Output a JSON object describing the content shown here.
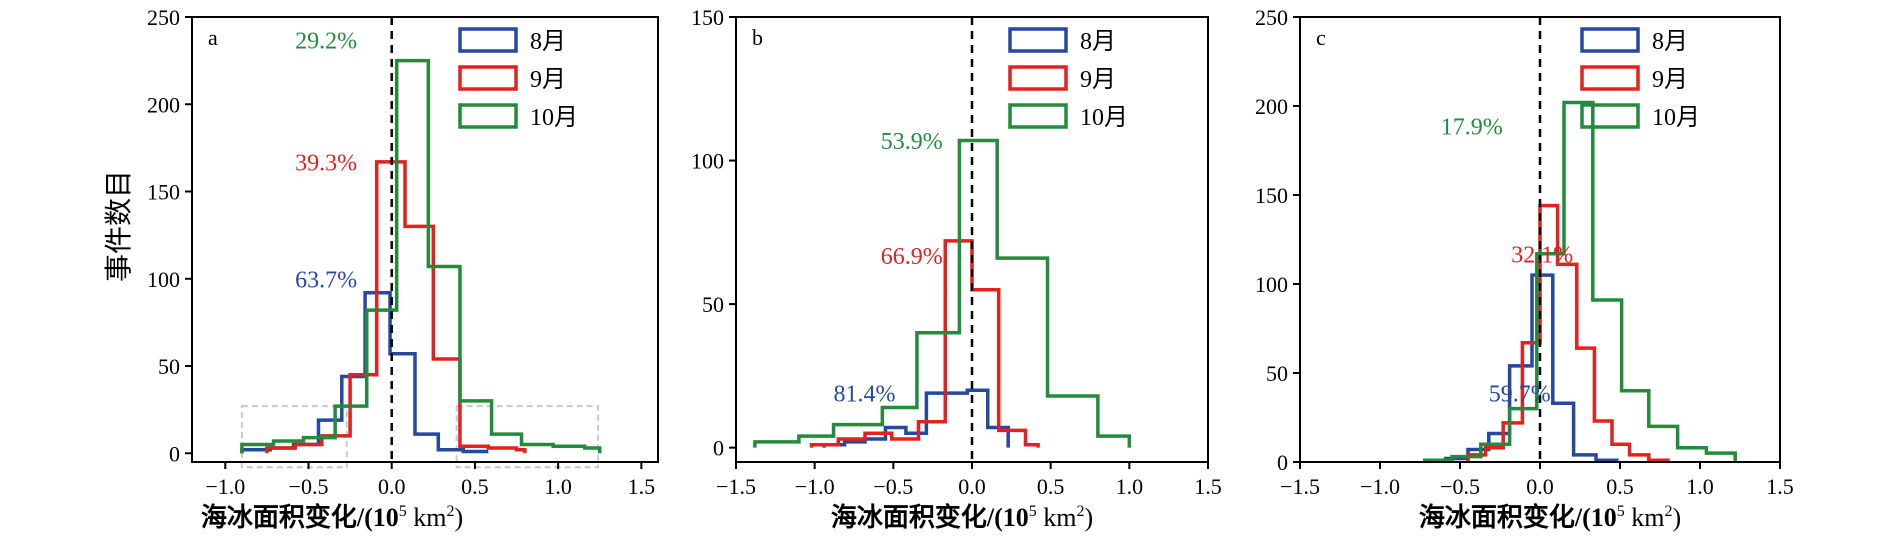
{
  "figure": {
    "ylabel": "事件数目",
    "xlabel_main": "海冰面积变化/(10",
    "xlabel_sup": "5",
    "xlabel_unit": " km",
    "xlabel_sup2": "2",
    "xlabel_close": ")"
  },
  "colors": {
    "aug": "#2548a3",
    "sep": "#e3211f",
    "oct": "#228b3c",
    "zero_line": "#000000",
    "box": "#c8c8c8"
  },
  "chart_data": [
    {
      "panel": "a",
      "type": "histogram-step",
      "xlim": [
        -1.2,
        1.6
      ],
      "ylim": [
        -5,
        250
      ],
      "xticks": [
        -1.0,
        -0.5,
        0.0,
        0.5,
        1.0,
        1.5
      ],
      "xtick_labels": [
        "−1.0",
        "−0.5",
        "0.0",
        "0.5",
        "1.0",
        "1.5"
      ],
      "yticks": [
        0,
        50,
        100,
        150,
        200,
        250
      ],
      "legend": [
        "8月",
        "9月",
        "10月"
      ],
      "legend_loc": "upper right",
      "annotations": [
        {
          "text": "29.2%",
          "series": "10月",
          "x": -0.58,
          "y": 232
        },
        {
          "text": "39.3%",
          "series": "9月",
          "x": -0.58,
          "y": 162
        },
        {
          "text": "63.7%",
          "series": "8月",
          "x": -0.58,
          "y": 95
        }
      ],
      "boxes": [
        {
          "x0": -0.9,
          "x1": -0.27,
          "y0": -8,
          "y1": 27
        },
        {
          "x0": 0.39,
          "x1": 1.24,
          "y0": -8,
          "y1": 27
        }
      ],
      "series": [
        {
          "name": "8月",
          "edges": [
            -0.9,
            -0.73,
            -0.59,
            -0.44,
            -0.3,
            -0.16,
            -0.01,
            0.14,
            0.28,
            0.43,
            0.57
          ],
          "counts": [
            2,
            3,
            5,
            19,
            44,
            92,
            57,
            11,
            2,
            1
          ]
        },
        {
          "name": "9月",
          "edges": [
            -0.75,
            -0.58,
            -0.42,
            -0.25,
            -0.09,
            0.08,
            0.25,
            0.41,
            0.58,
            0.75,
            0.8
          ],
          "counts": [
            3,
            5,
            10,
            45,
            167,
            130,
            54,
            4,
            3,
            2
          ]
        },
        {
          "name": "10月",
          "edges": [
            -0.9,
            -0.71,
            -0.53,
            -0.34,
            -0.15,
            0.03,
            0.22,
            0.41,
            0.6,
            0.78,
            0.97,
            1.16,
            1.25
          ],
          "counts": [
            5,
            7,
            9,
            27,
            82,
            225,
            107,
            30,
            11,
            5,
            4,
            3
          ]
        }
      ]
    },
    {
      "panel": "b",
      "type": "histogram-step",
      "xlim": [
        -1.5,
        1.5
      ],
      "ylim": [
        -5,
        150
      ],
      "xticks": [
        -1.5,
        -1.0,
        -0.5,
        0.0,
        0.5,
        1.0,
        1.5
      ],
      "xtick_labels": [
        "−1.5",
        "−1.0",
        "−0.5",
        "0.0",
        "0.5",
        "1.0",
        "1.5"
      ],
      "yticks": [
        0,
        50,
        100,
        150
      ],
      "legend": [
        "8月",
        "9月",
        "10月"
      ],
      "legend_loc": "upper right",
      "annotations": [
        {
          "text": "53.9%",
          "series": "10月",
          "x": -0.58,
          "y": 104
        },
        {
          "text": "66.9%",
          "series": "9月",
          "x": -0.58,
          "y": 64
        },
        {
          "text": "81.4%",
          "series": "8月",
          "x": -0.88,
          "y": 16
        }
      ],
      "series": [
        {
          "name": "8月",
          "edges": [
            -0.94,
            -0.81,
            -0.68,
            -0.55,
            -0.42,
            -0.29,
            -0.16,
            -0.03,
            0.1,
            0.23
          ],
          "counts": [
            1,
            2,
            3,
            7,
            5,
            19,
            19,
            20,
            7
          ]
        },
        {
          "name": "9月",
          "edges": [
            -1.02,
            -0.85,
            -0.68,
            -0.51,
            -0.34,
            -0.17,
            0.0,
            0.17,
            0.34,
            0.42
          ],
          "counts": [
            1,
            3,
            5,
            3,
            9,
            72,
            55,
            6,
            1
          ]
        },
        {
          "name": "10月",
          "edges": [
            -1.38,
            -1.1,
            -0.88,
            -0.57,
            -0.35,
            -0.08,
            0.16,
            0.48,
            0.8,
            1.0
          ],
          "counts": [
            2,
            4,
            8,
            14,
            40,
            107,
            66,
            18,
            4
          ]
        }
      ]
    },
    {
      "panel": "c",
      "type": "histogram-step",
      "xlim": [
        -1.5,
        1.5
      ],
      "ylim": [
        0,
        250
      ],
      "xticks": [
        -1.5,
        -1.0,
        -0.5,
        0.0,
        0.5,
        1.0,
        1.5
      ],
      "xtick_labels": [
        "−1.5",
        "−1.0",
        "−0.5",
        "0.0",
        "0.5",
        "1.0",
        "1.5"
      ],
      "yticks": [
        0,
        50,
        100,
        150,
        200,
        250
      ],
      "legend": [
        "8月",
        "9月",
        "10月"
      ],
      "legend_loc": "upper right",
      "annotations": [
        {
          "text": "17.9%",
          "series": "10月",
          "x": -0.62,
          "y": 184
        },
        {
          "text": "32.1%",
          "series": "9月",
          "x": -0.18,
          "y": 112
        },
        {
          "text": "59.7%",
          "series": "8月",
          "x": -0.32,
          "y": 34
        }
      ],
      "series": [
        {
          "name": "8月",
          "edges": [
            -0.72,
            -0.59,
            -0.45,
            -0.32,
            -0.19,
            -0.05,
            0.08,
            0.21,
            0.35,
            0.48
          ],
          "counts": [
            1,
            2,
            7,
            16,
            54,
            105,
            33,
            4,
            1
          ]
        },
        {
          "name": "9月",
          "edges": [
            -0.45,
            -0.34,
            -0.23,
            -0.11,
            0.0,
            0.11,
            0.23,
            0.34,
            0.45,
            0.56,
            0.68,
            0.8
          ],
          "counts": [
            4,
            8,
            22,
            67,
            144,
            111,
            64,
            23,
            10,
            4,
            1
          ]
        },
        {
          "name": "10月",
          "edges": [
            -0.72,
            -0.55,
            -0.37,
            -0.19,
            -0.02,
            0.15,
            0.33,
            0.51,
            0.68,
            0.86,
            1.04,
            1.22
          ],
          "counts": [
            1,
            3,
            10,
            30,
            117,
            202,
            91,
            40,
            20,
            8,
            5
          ]
        }
      ]
    }
  ]
}
